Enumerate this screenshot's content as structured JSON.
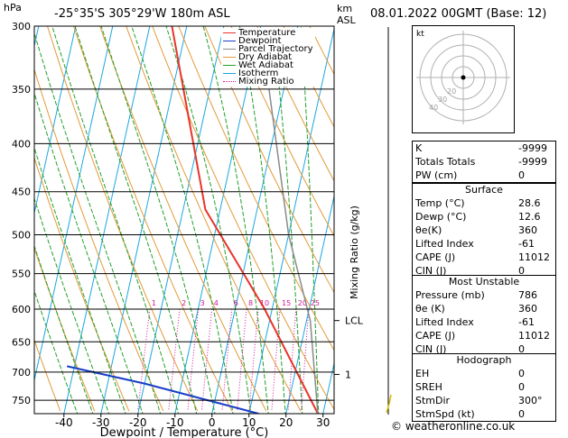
{
  "header": {
    "units": "hPa",
    "location": "-25°35'S  305°29'W  180m  ASL",
    "km_label": "km",
    "asl_label": "ASL",
    "datetime": "08.01.2022  00GMT  (Base: 12)"
  },
  "legend": [
    {
      "label": "Temperature",
      "color": "#e8342a",
      "style": "solid"
    },
    {
      "label": "Dewpoint",
      "color": "#1a3ec8",
      "style": "solid"
    },
    {
      "label": "Parcel Trajectory",
      "color": "#8a8a8a",
      "style": "solid"
    },
    {
      "label": "Dry Adiabat",
      "color": "#e39a3a",
      "style": "solid"
    },
    {
      "label": "Wet Adiabat",
      "color": "#22a02a",
      "style": "solid"
    },
    {
      "label": "Isotherm",
      "color": "#19a7e0",
      "style": "solid"
    },
    {
      "label": "Mixing Ratio",
      "color": "#d0169a",
      "style": "dotted"
    }
  ],
  "chart_data": {
    "type": "line",
    "title": "",
    "xlabel": "Dewpoint / Temperature (°C)",
    "ylabel": "hPa",
    "y2label": "Mixing Ratio (g/kg)",
    "x_ticks": [
      -40,
      -30,
      -20,
      -10,
      0,
      10,
      20,
      30
    ],
    "x_range": [
      -48,
      33
    ],
    "pressure_levels": [
      300,
      350,
      400,
      450,
      500,
      550,
      600,
      650,
      700,
      750
    ],
    "pressure_range": [
      300,
      775
    ],
    "log_pressure": true,
    "skew_deg_per_unit": "isotherms slanted",
    "mixing_ratio_labels": [
      "1",
      "2",
      "3",
      "4",
      "6",
      "8",
      "10",
      "15",
      "20",
      "25"
    ],
    "km_markers": [
      {
        "label": "LCL",
        "pressure": 617
      },
      {
        "label": "1",
        "pressure": 704
      }
    ],
    "series": [
      {
        "name": "Temperature",
        "points": [
          [
            -34,
            300
          ],
          [
            -14,
            470
          ],
          [
            8,
            600
          ],
          [
            28.6,
            775
          ]
        ]
      },
      {
        "name": "Dewpoint",
        "points": [
          [
            -42,
            690
          ],
          [
            -20,
            720
          ],
          [
            12.6,
            775
          ]
        ]
      },
      {
        "name": "Parcel Trajectory",
        "points": [
          [
            28.6,
            775
          ],
          [
            21,
            617
          ],
          [
            10,
            500
          ],
          [
            -4,
            350
          ]
        ]
      }
    ]
  },
  "hodograph": {
    "label": "kt",
    "rings": [
      "10",
      "20",
      "30",
      "40"
    ]
  },
  "indices": {
    "rows": [
      {
        "label": "K",
        "value": "-9999"
      },
      {
        "label": "Totals Totals",
        "value": "-9999"
      },
      {
        "label": "PW (cm)",
        "value": "0"
      }
    ]
  },
  "surface": {
    "title": "Surface",
    "rows": [
      {
        "label": "Temp (°C)",
        "value": "28.6"
      },
      {
        "label": "Dewp (°C)",
        "value": "12.6"
      },
      {
        "label": "θe(K)",
        "value": "360"
      },
      {
        "label": "Lifted Index",
        "value": "-61"
      },
      {
        "label": "CAPE (J)",
        "value": "11012"
      },
      {
        "label": "CIN (J)",
        "value": "0"
      }
    ]
  },
  "most_unstable": {
    "title": "Most Unstable",
    "rows": [
      {
        "label": "Pressure (mb)",
        "value": "786"
      },
      {
        "label": "θe (K)",
        "value": "360"
      },
      {
        "label": "Lifted Index",
        "value": "-61"
      },
      {
        "label": "CAPE (J)",
        "value": "11012"
      },
      {
        "label": "CIN (J)",
        "value": "0"
      }
    ]
  },
  "hodo_table": {
    "title": "Hodograph",
    "rows": [
      {
        "label": "EH",
        "value": "0"
      },
      {
        "label": "SREH",
        "value": "0"
      },
      {
        "label": "StmDir",
        "value": "300°"
      },
      {
        "label": "StmSpd (kt)",
        "value": "0"
      }
    ]
  },
  "footer": "© weatheronline.co.uk"
}
